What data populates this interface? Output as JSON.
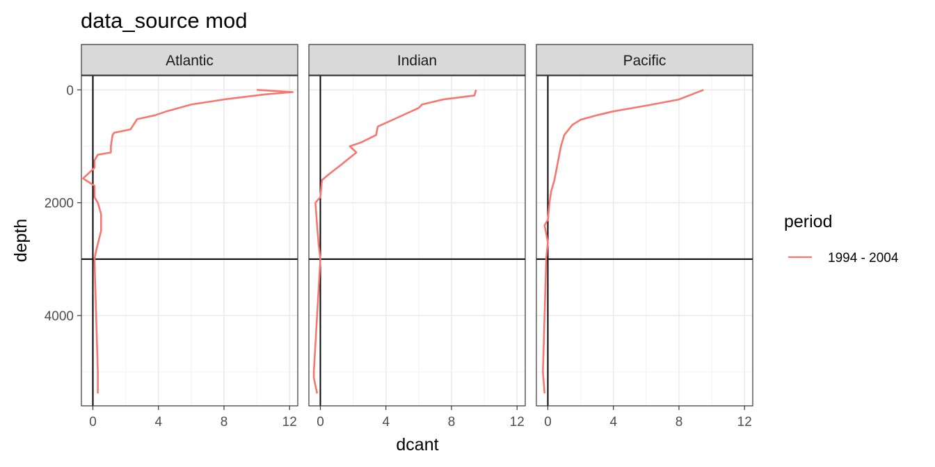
{
  "chart_data": {
    "type": "line",
    "title": "data_source mod",
    "xlabel": "dcant",
    "ylabel": "depth",
    "xlim": [
      -0.7,
      12.5
    ],
    "ylim": [
      5600,
      -250
    ],
    "y_reversed": true,
    "x_ticks": [
      0,
      4,
      8,
      12
    ],
    "x_minor_ticks": [
      2,
      6,
      10
    ],
    "y_ticks": [
      0,
      2000,
      4000
    ],
    "y_minor_ticks": [
      1000,
      3000,
      5000
    ],
    "vline_x": 0,
    "hline_y": 3000,
    "grid": true,
    "legend_title": "period",
    "legend_position": "right",
    "series_color": "#F8766D",
    "series": [
      {
        "name": "1994 - 2004"
      }
    ],
    "facets": [
      {
        "label": "Atlantic",
        "points": [
          [
            10.0,
            0
          ],
          [
            12.2,
            40
          ],
          [
            10.5,
            80
          ],
          [
            8.0,
            170
          ],
          [
            6.0,
            260
          ],
          [
            4.5,
            380
          ],
          [
            3.8,
            450
          ],
          [
            2.7,
            520
          ],
          [
            2.3,
            700
          ],
          [
            1.3,
            760
          ],
          [
            1.2,
            800
          ],
          [
            1.1,
            1000
          ],
          [
            1.1,
            1110
          ],
          [
            0.3,
            1150
          ],
          [
            0.1,
            1250
          ],
          [
            0.1,
            1380
          ],
          [
            -0.6,
            1570
          ],
          [
            0.1,
            1700
          ],
          [
            0.1,
            1900
          ],
          [
            0.3,
            2000
          ],
          [
            0.5,
            2200
          ],
          [
            0.5,
            2500
          ],
          [
            0.2,
            2850
          ],
          [
            0.1,
            3000
          ],
          [
            0.2,
            4000
          ],
          [
            0.3,
            5000
          ],
          [
            0.3,
            5380
          ]
        ]
      },
      {
        "label": "Indian",
        "points": [
          [
            9.5,
            0
          ],
          [
            9.4,
            100
          ],
          [
            7.5,
            170
          ],
          [
            6.2,
            260
          ],
          [
            6.0,
            320
          ],
          [
            4.5,
            520
          ],
          [
            3.5,
            650
          ],
          [
            3.4,
            800
          ],
          [
            2.5,
            930
          ],
          [
            1.8,
            1000
          ],
          [
            2.2,
            1110
          ],
          [
            1.3,
            1320
          ],
          [
            0.5,
            1500
          ],
          [
            0.1,
            1600
          ],
          [
            0.0,
            1900
          ],
          [
            -0.3,
            2000
          ],
          [
            -0.2,
            2400
          ],
          [
            -0.1,
            2750
          ],
          [
            0.0,
            3000
          ],
          [
            -0.2,
            4000
          ],
          [
            -0.4,
            5000
          ],
          [
            -0.4,
            5100
          ],
          [
            -0.2,
            5380
          ]
        ]
      },
      {
        "label": "Pacific",
        "points": [
          [
            9.5,
            0
          ],
          [
            8.0,
            170
          ],
          [
            6.0,
            280
          ],
          [
            4.0,
            380
          ],
          [
            3.0,
            450
          ],
          [
            2.0,
            530
          ],
          [
            1.5,
            620
          ],
          [
            1.0,
            800
          ],
          [
            0.8,
            1000
          ],
          [
            0.6,
            1300
          ],
          [
            0.4,
            1600
          ],
          [
            0.2,
            1800
          ],
          [
            0.1,
            2000
          ],
          [
            0.0,
            2300
          ],
          [
            -0.2,
            2400
          ],
          [
            0.0,
            2700
          ],
          [
            -0.1,
            3000
          ],
          [
            -0.2,
            4000
          ],
          [
            -0.3,
            5000
          ],
          [
            -0.2,
            5380
          ]
        ]
      }
    ]
  }
}
